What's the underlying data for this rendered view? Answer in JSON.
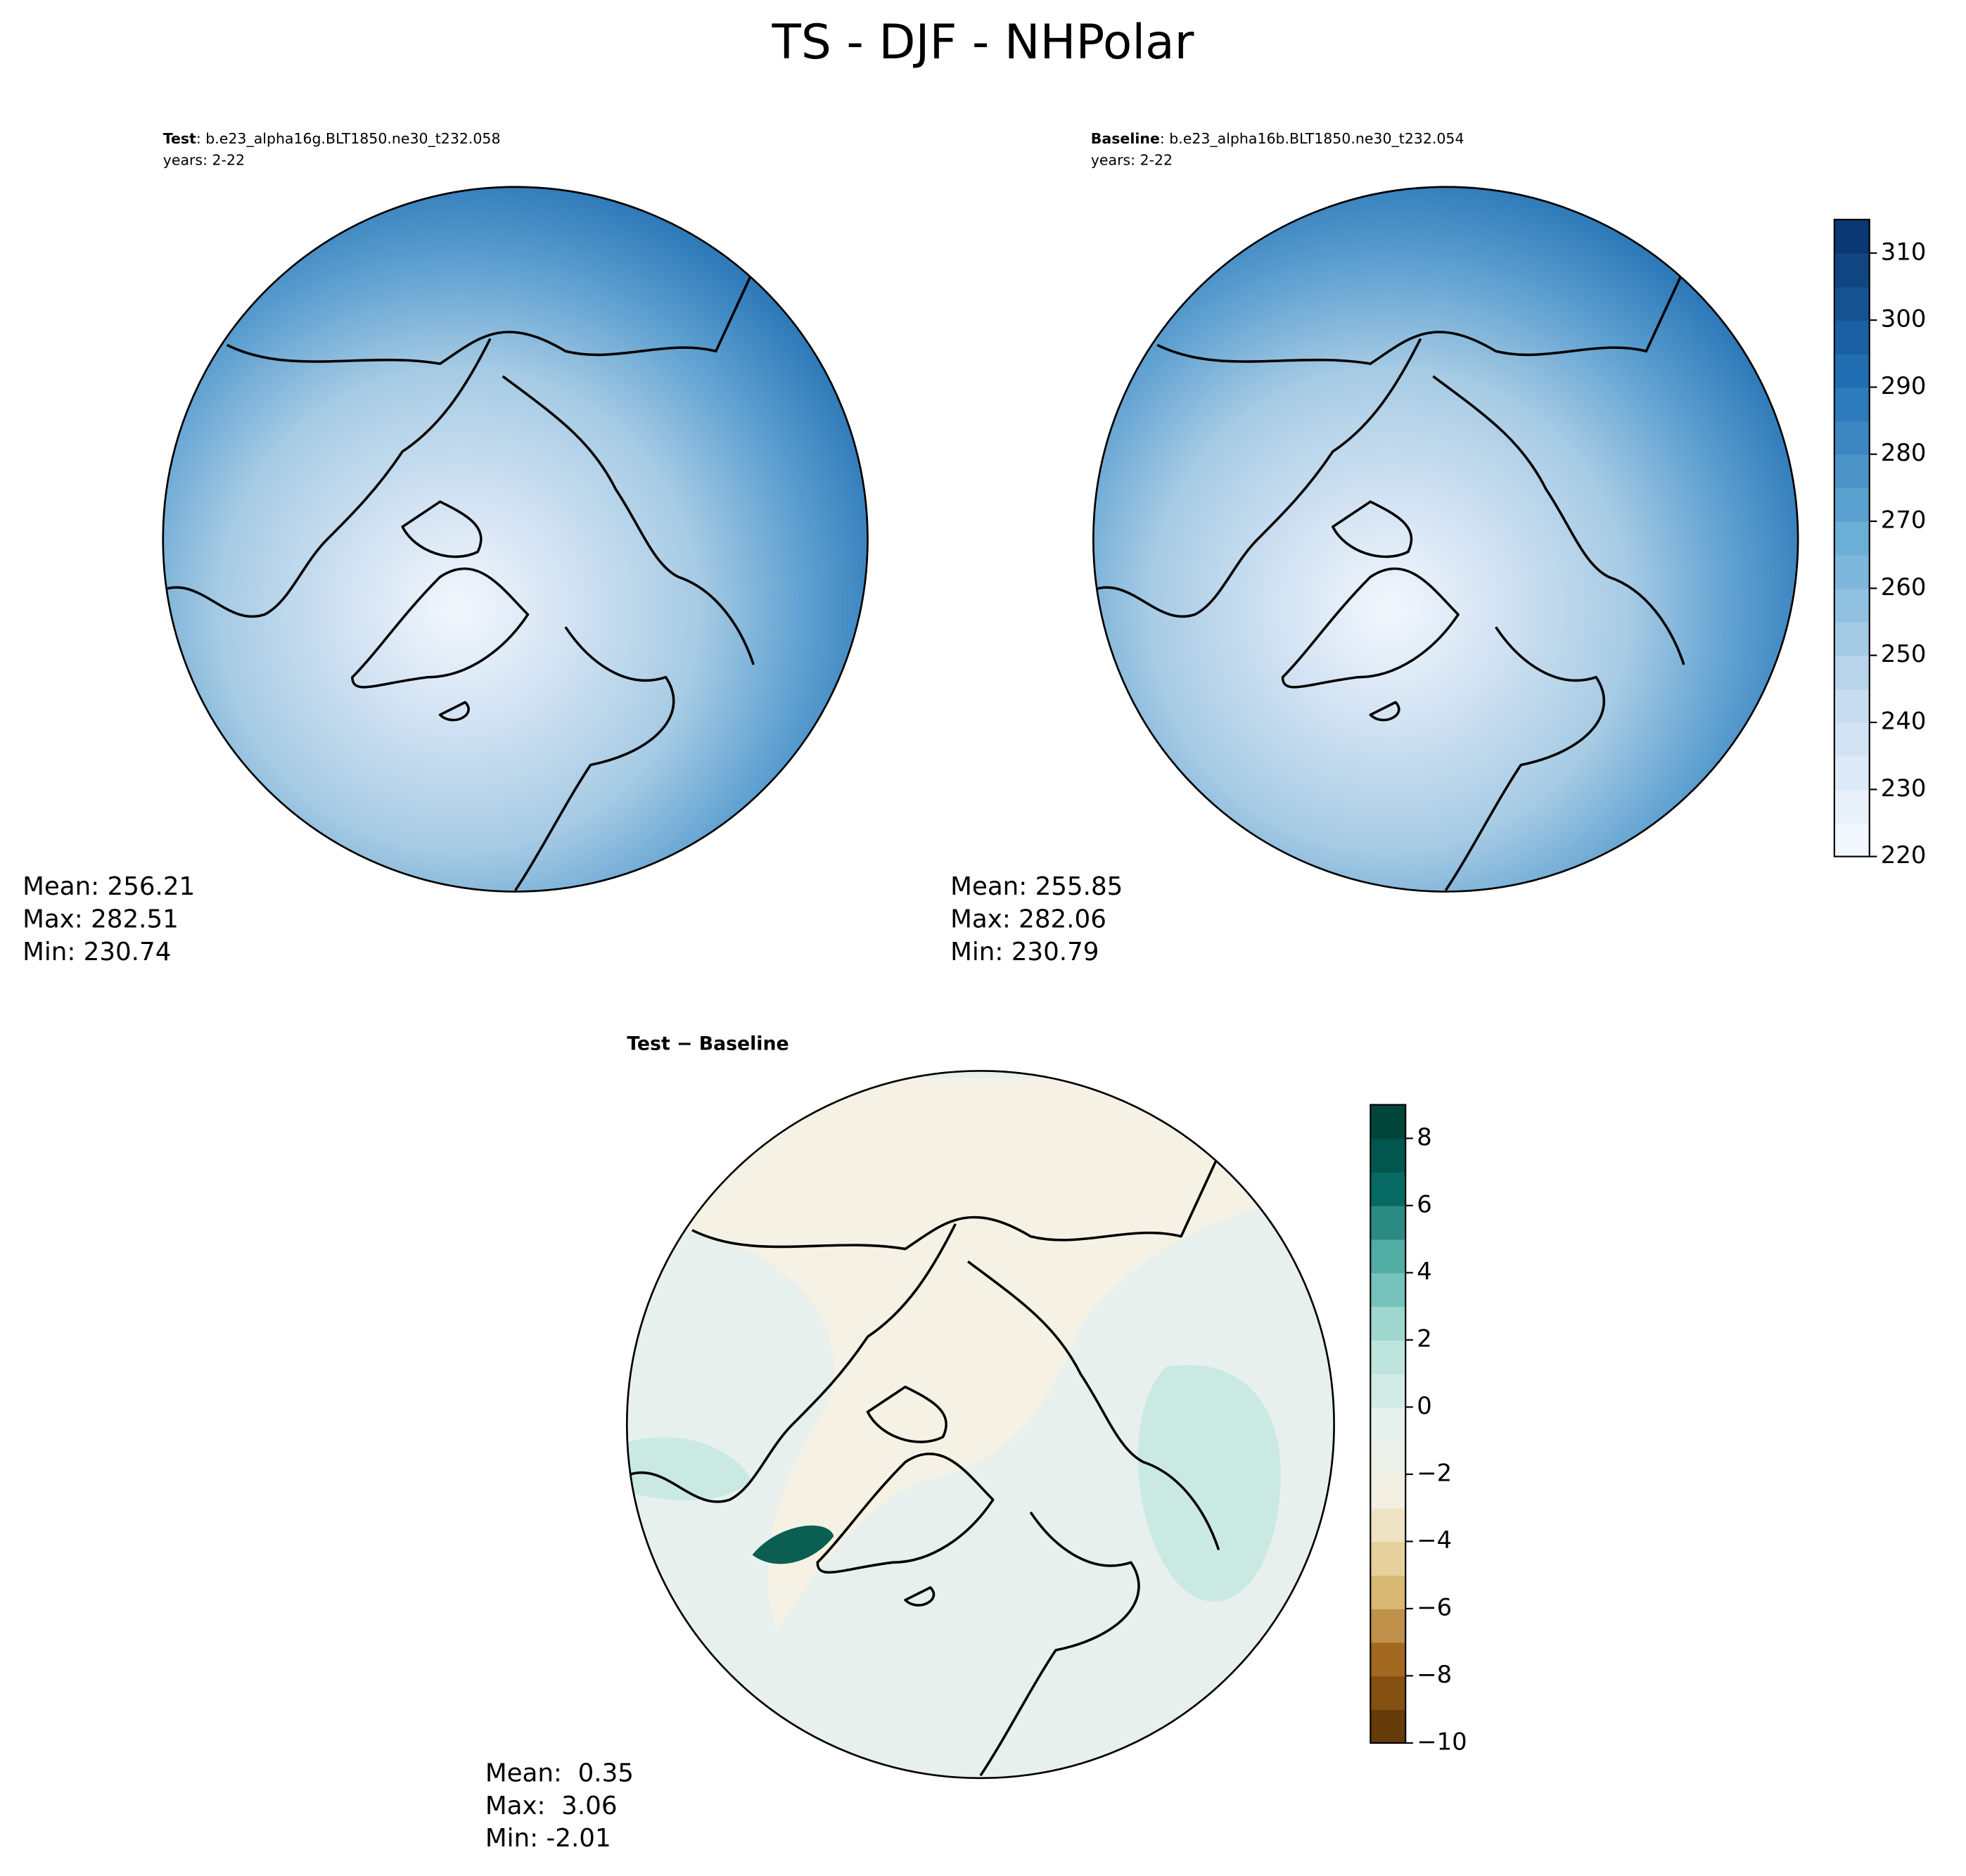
{
  "title": "TS - DJF - NHPolar",
  "panels": [
    {
      "label": "Test",
      "case": ": b.e23_alpha16g.BLT1850.ne30_t232.058",
      "years": "years: 2-22",
      "stats": [
        "Mean: 256.21",
        "Max: 282.51",
        "Min: 230.74"
      ]
    },
    {
      "label": "Baseline",
      "case": ": b.e23_alpha16b.BLT1850.ne30_t232.054",
      "years": "years: 2-22",
      "stats": [
        "Mean: 255.85",
        "Max: 282.06",
        "Min: 230.79"
      ]
    },
    {
      "label": "Test − Baseline",
      "stats": [
        "Mean:  0.35",
        "Max:  3.06",
        "Min: -2.01"
      ]
    }
  ],
  "colorbars": [
    {
      "lim": [
        220,
        315
      ],
      "ticks": [
        220,
        230,
        240,
        250,
        260,
        270,
        280,
        290,
        300,
        310
      ],
      "colors": [
        "#f7fbff",
        "#c6dbef",
        "#6baed6",
        "#2171b5",
        "#08306b"
      ]
    },
    {
      "lim": [
        -10,
        9
      ],
      "ticks": [
        {
          "value": -10,
          "label": "−10"
        },
        {
          "value": -8,
          "label": "−8"
        },
        {
          "value": -6,
          "label": "−6"
        },
        {
          "value": -4,
          "label": "−4"
        },
        {
          "value": -2,
          "label": "−2"
        },
        0,
        2,
        4,
        6,
        8
      ],
      "colors": [
        "#543005",
        "#a0631a",
        "#dfc27d",
        "#f5efe0",
        "#e6f1ee",
        "#b7e3da",
        "#5ab4ac",
        "#01665e",
        "#003c30"
      ]
    }
  ]
}
